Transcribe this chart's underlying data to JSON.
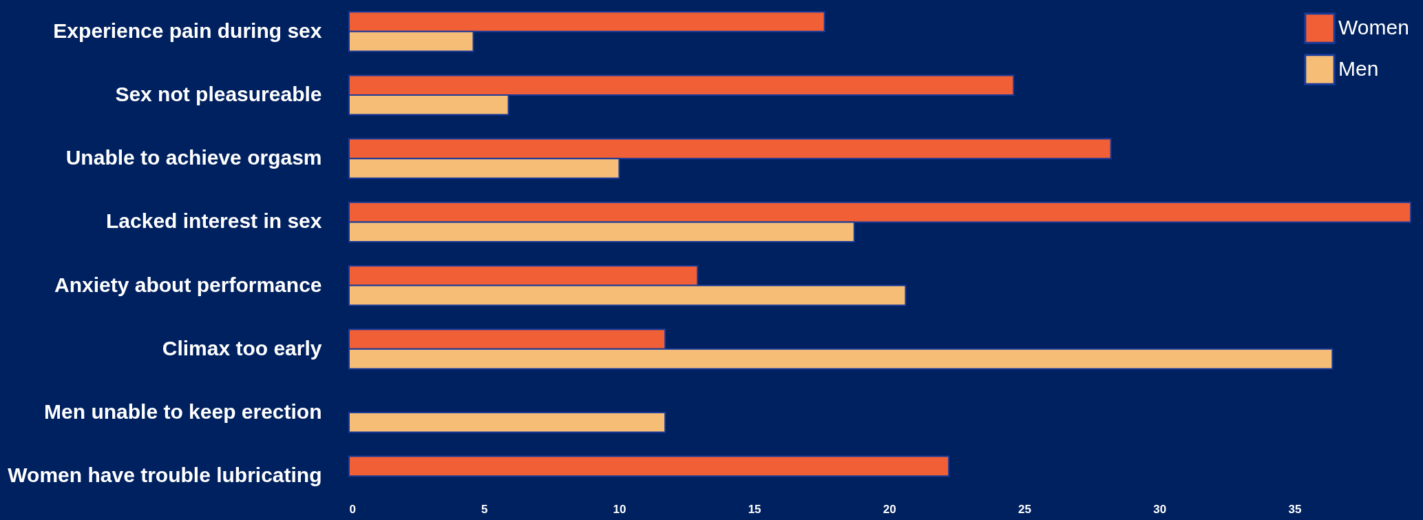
{
  "chart_data": {
    "type": "bar",
    "orientation": "horizontal",
    "categories": [
      "Experience pain during sex",
      "Sex not pleasureable",
      "Unable to achieve orgasm",
      "Lacked interest in sex",
      "Anxiety about performance",
      "Climax too early",
      "Men unable to keep erection",
      "Women have trouble lubricating"
    ],
    "series": [
      {
        "name": "Women",
        "color": "#f05f35",
        "values": [
          17.6,
          24.6,
          28.2,
          39.3,
          12.9,
          11.7,
          null,
          22.2
        ]
      },
      {
        "name": "Men",
        "color": "#f5bd76",
        "values": [
          4.6,
          5.9,
          10.0,
          18.7,
          20.6,
          36.4,
          11.7,
          null
        ]
      }
    ],
    "xlim": [
      0,
      39.5
    ],
    "xticks": [
      0,
      5,
      10,
      15,
      20,
      25,
      30,
      35
    ],
    "grid": false,
    "legend": "top right"
  }
}
